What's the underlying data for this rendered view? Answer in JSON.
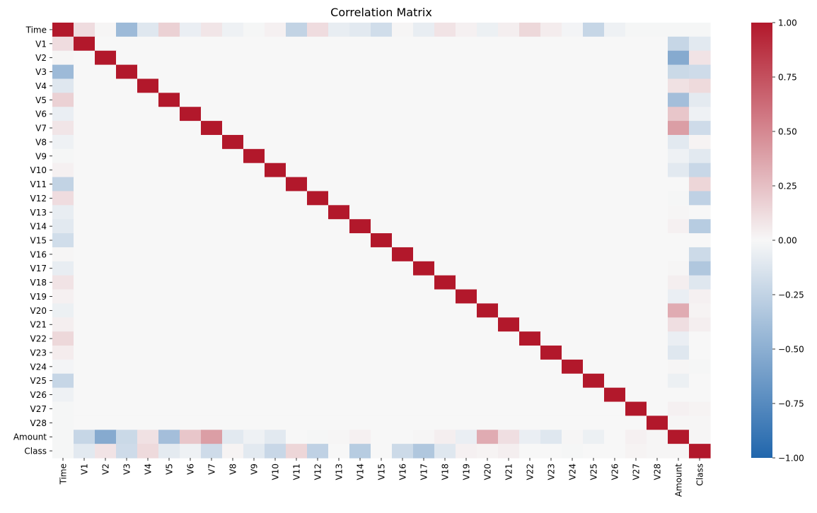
{
  "chart_data": {
    "type": "heatmap",
    "title": "Correlation Matrix",
    "xlabel": "",
    "ylabel": "",
    "labels": [
      "Time",
      "V1",
      "V2",
      "V3",
      "V4",
      "V5",
      "V6",
      "V7",
      "V8",
      "V9",
      "V10",
      "V11",
      "V12",
      "V13",
      "V14",
      "V15",
      "V16",
      "V17",
      "V18",
      "V19",
      "V20",
      "V21",
      "V22",
      "V23",
      "V24",
      "V25",
      "V26",
      "V27",
      "V28",
      "Amount",
      "Class"
    ],
    "values": [
      [
        1.0,
        0.12,
        0.01,
        -0.42,
        -0.11,
        0.17,
        -0.06,
        0.08,
        -0.04,
        -0.01,
        0.03,
        -0.25,
        0.12,
        -0.07,
        -0.1,
        -0.18,
        0.01,
        -0.07,
        0.09,
        0.03,
        -0.05,
        0.04,
        0.14,
        0.05,
        -0.02,
        -0.23,
        -0.04,
        -0.01,
        -0.01,
        -0.01,
        -0.01
      ],
      [
        0.12,
        1.0,
        0.0,
        0.0,
        0.0,
        0.0,
        0.0,
        0.0,
        0.0,
        0.0,
        0.0,
        0.0,
        0.0,
        0.0,
        0.0,
        0.0,
        0.0,
        0.0,
        0.0,
        0.0,
        0.0,
        0.0,
        0.0,
        0.0,
        0.0,
        0.0,
        0.0,
        0.0,
        0.0,
        -0.23,
        -0.1
      ],
      [
        0.01,
        0.0,
        1.0,
        0.0,
        0.0,
        0.0,
        0.0,
        0.0,
        0.0,
        0.0,
        0.0,
        0.0,
        0.0,
        0.0,
        0.0,
        0.0,
        0.0,
        0.0,
        0.0,
        0.0,
        0.0,
        0.0,
        0.0,
        0.0,
        0.0,
        0.0,
        0.0,
        0.0,
        0.0,
        -0.53,
        0.09
      ],
      [
        -0.42,
        0.0,
        0.0,
        1.0,
        0.0,
        0.0,
        0.0,
        0.0,
        0.0,
        0.0,
        0.0,
        0.0,
        0.0,
        0.0,
        0.0,
        0.0,
        0.0,
        0.0,
        0.0,
        0.0,
        0.0,
        0.0,
        0.0,
        0.0,
        0.0,
        0.0,
        0.0,
        0.0,
        0.0,
        -0.21,
        -0.19
      ],
      [
        -0.11,
        0.0,
        0.0,
        0.0,
        1.0,
        0.0,
        0.0,
        0.0,
        0.0,
        0.0,
        0.0,
        0.0,
        0.0,
        0.0,
        0.0,
        0.0,
        0.0,
        0.0,
        0.0,
        0.0,
        0.0,
        0.0,
        0.0,
        0.0,
        0.0,
        0.0,
        0.0,
        0.0,
        0.0,
        0.1,
        0.13
      ],
      [
        0.17,
        0.0,
        0.0,
        0.0,
        0.0,
        1.0,
        0.0,
        0.0,
        0.0,
        0.0,
        0.0,
        0.0,
        0.0,
        0.0,
        0.0,
        0.0,
        0.0,
        0.0,
        0.0,
        0.0,
        0.0,
        0.0,
        0.0,
        0.0,
        0.0,
        0.0,
        0.0,
        0.0,
        0.0,
        -0.39,
        -0.09
      ],
      [
        -0.06,
        0.0,
        0.0,
        0.0,
        0.0,
        0.0,
        1.0,
        0.0,
        0.0,
        0.0,
        0.0,
        0.0,
        0.0,
        0.0,
        0.0,
        0.0,
        0.0,
        0.0,
        0.0,
        0.0,
        0.0,
        0.0,
        0.0,
        0.0,
        0.0,
        0.0,
        0.0,
        0.0,
        0.0,
        0.22,
        -0.04
      ],
      [
        0.08,
        0.0,
        0.0,
        0.0,
        0.0,
        0.0,
        0.0,
        1.0,
        0.0,
        0.0,
        0.0,
        0.0,
        0.0,
        0.0,
        0.0,
        0.0,
        0.0,
        0.0,
        0.0,
        0.0,
        0.0,
        0.0,
        0.0,
        0.0,
        0.0,
        0.0,
        0.0,
        0.0,
        0.0,
        0.4,
        -0.19
      ],
      [
        -0.04,
        0.0,
        0.0,
        0.0,
        0.0,
        0.0,
        0.0,
        0.0,
        1.0,
        0.0,
        0.0,
        0.0,
        0.0,
        0.0,
        0.0,
        0.0,
        0.0,
        0.0,
        0.0,
        0.0,
        0.0,
        0.0,
        0.0,
        0.0,
        0.0,
        0.0,
        0.0,
        0.0,
        0.0,
        -0.1,
        0.02
      ],
      [
        -0.01,
        0.0,
        0.0,
        0.0,
        0.0,
        0.0,
        0.0,
        0.0,
        0.0,
        1.0,
        0.0,
        0.0,
        0.0,
        0.0,
        0.0,
        0.0,
        0.0,
        0.0,
        0.0,
        0.0,
        0.0,
        0.0,
        0.0,
        0.0,
        0.0,
        0.0,
        0.0,
        0.0,
        0.0,
        -0.04,
        -0.1
      ],
      [
        0.03,
        0.0,
        0.0,
        0.0,
        0.0,
        0.0,
        0.0,
        0.0,
        0.0,
        0.0,
        1.0,
        0.0,
        0.0,
        0.0,
        0.0,
        0.0,
        0.0,
        0.0,
        0.0,
        0.0,
        0.0,
        0.0,
        0.0,
        0.0,
        0.0,
        0.0,
        0.0,
        0.0,
        0.0,
        -0.1,
        -0.22
      ],
      [
        -0.25,
        0.0,
        0.0,
        0.0,
        0.0,
        0.0,
        0.0,
        0.0,
        0.0,
        0.0,
        0.0,
        1.0,
        0.0,
        0.0,
        0.0,
        0.0,
        0.0,
        0.0,
        0.0,
        0.0,
        0.0,
        0.0,
        0.0,
        0.0,
        0.0,
        0.0,
        0.0,
        0.0,
        0.0,
        0.0,
        0.15
      ],
      [
        0.12,
        0.0,
        0.0,
        0.0,
        0.0,
        0.0,
        0.0,
        0.0,
        0.0,
        0.0,
        0.0,
        0.0,
        1.0,
        0.0,
        0.0,
        0.0,
        0.0,
        0.0,
        0.0,
        0.0,
        0.0,
        0.0,
        0.0,
        0.0,
        0.0,
        0.0,
        0.0,
        0.0,
        0.0,
        -0.01,
        -0.26
      ],
      [
        -0.07,
        0.0,
        0.0,
        0.0,
        0.0,
        0.0,
        0.0,
        0.0,
        0.0,
        0.0,
        0.0,
        0.0,
        0.0,
        1.0,
        0.0,
        0.0,
        0.0,
        0.0,
        0.0,
        0.0,
        0.0,
        0.0,
        0.0,
        0.0,
        0.0,
        0.0,
        0.0,
        0.0,
        0.0,
        0.01,
        -0.0
      ],
      [
        -0.1,
        0.0,
        0.0,
        0.0,
        0.0,
        0.0,
        0.0,
        0.0,
        0.0,
        0.0,
        0.0,
        0.0,
        0.0,
        0.0,
        1.0,
        0.0,
        0.0,
        0.0,
        0.0,
        0.0,
        0.0,
        0.0,
        0.0,
        0.0,
        0.0,
        0.0,
        0.0,
        0.0,
        0.0,
        0.03,
        -0.3
      ],
      [
        -0.18,
        0.0,
        0.0,
        0.0,
        0.0,
        0.0,
        0.0,
        0.0,
        0.0,
        0.0,
        0.0,
        0.0,
        0.0,
        0.0,
        0.0,
        1.0,
        0.0,
        0.0,
        0.0,
        0.0,
        0.0,
        0.0,
        0.0,
        0.0,
        0.0,
        0.0,
        0.0,
        0.0,
        0.0,
        -0.0,
        -0.0
      ],
      [
        0.01,
        0.0,
        0.0,
        0.0,
        0.0,
        0.0,
        0.0,
        0.0,
        0.0,
        0.0,
        0.0,
        0.0,
        0.0,
        0.0,
        0.0,
        0.0,
        1.0,
        0.0,
        0.0,
        0.0,
        0.0,
        0.0,
        0.0,
        0.0,
        0.0,
        0.0,
        0.0,
        0.0,
        0.0,
        -0.0,
        -0.2
      ],
      [
        -0.07,
        0.0,
        0.0,
        0.0,
        0.0,
        0.0,
        0.0,
        0.0,
        0.0,
        0.0,
        0.0,
        0.0,
        0.0,
        0.0,
        0.0,
        0.0,
        0.0,
        1.0,
        0.0,
        0.0,
        0.0,
        0.0,
        0.0,
        0.0,
        0.0,
        0.0,
        0.0,
        0.0,
        0.0,
        0.01,
        -0.33
      ],
      [
        0.09,
        0.0,
        0.0,
        0.0,
        0.0,
        0.0,
        0.0,
        0.0,
        0.0,
        0.0,
        0.0,
        0.0,
        0.0,
        0.0,
        0.0,
        0.0,
        0.0,
        0.0,
        1.0,
        0.0,
        0.0,
        0.0,
        0.0,
        0.0,
        0.0,
        0.0,
        0.0,
        0.0,
        0.0,
        0.04,
        -0.11
      ],
      [
        0.03,
        0.0,
        0.0,
        0.0,
        0.0,
        0.0,
        0.0,
        0.0,
        0.0,
        0.0,
        0.0,
        0.0,
        0.0,
        0.0,
        0.0,
        0.0,
        0.0,
        0.0,
        0.0,
        1.0,
        0.0,
        0.0,
        0.0,
        0.0,
        0.0,
        0.0,
        0.0,
        0.0,
        0.0,
        -0.06,
        0.03
      ],
      [
        -0.05,
        0.0,
        0.0,
        0.0,
        0.0,
        0.0,
        0.0,
        0.0,
        0.0,
        0.0,
        0.0,
        0.0,
        0.0,
        0.0,
        0.0,
        0.0,
        0.0,
        0.0,
        0.0,
        0.0,
        1.0,
        0.0,
        0.0,
        0.0,
        0.0,
        0.0,
        0.0,
        0.0,
        0.0,
        0.34,
        0.02
      ],
      [
        0.04,
        0.0,
        0.0,
        0.0,
        0.0,
        0.0,
        0.0,
        0.0,
        0.0,
        0.0,
        0.0,
        0.0,
        0.0,
        0.0,
        0.0,
        0.0,
        0.0,
        0.0,
        0.0,
        0.0,
        0.0,
        1.0,
        0.0,
        0.0,
        0.0,
        0.0,
        0.0,
        0.0,
        0.0,
        0.11,
        0.04
      ],
      [
        0.14,
        0.0,
        0.0,
        0.0,
        0.0,
        0.0,
        0.0,
        0.0,
        0.0,
        0.0,
        0.0,
        0.0,
        0.0,
        0.0,
        0.0,
        0.0,
        0.0,
        0.0,
        0.0,
        0.0,
        0.0,
        0.0,
        1.0,
        0.0,
        0.0,
        0.0,
        0.0,
        0.0,
        0.0,
        -0.06,
        0.0
      ],
      [
        0.05,
        0.0,
        0.0,
        0.0,
        0.0,
        0.0,
        0.0,
        0.0,
        0.0,
        0.0,
        0.0,
        0.0,
        0.0,
        0.0,
        0.0,
        0.0,
        0.0,
        0.0,
        0.0,
        0.0,
        0.0,
        0.0,
        0.0,
        1.0,
        0.0,
        0.0,
        0.0,
        0.0,
        0.0,
        -0.11,
        -0.0
      ],
      [
        -0.02,
        0.0,
        0.0,
        0.0,
        0.0,
        0.0,
        0.0,
        0.0,
        0.0,
        0.0,
        0.0,
        0.0,
        0.0,
        0.0,
        0.0,
        0.0,
        0.0,
        0.0,
        0.0,
        0.0,
        0.0,
        0.0,
        0.0,
        0.0,
        1.0,
        0.0,
        0.0,
        0.0,
        0.0,
        0.01,
        -0.01
      ],
      [
        -0.23,
        0.0,
        0.0,
        0.0,
        0.0,
        0.0,
        0.0,
        0.0,
        0.0,
        0.0,
        0.0,
        0.0,
        0.0,
        0.0,
        0.0,
        0.0,
        0.0,
        0.0,
        0.0,
        0.0,
        0.0,
        0.0,
        0.0,
        0.0,
        0.0,
        1.0,
        0.0,
        0.0,
        0.0,
        -0.05,
        0.0
      ],
      [
        -0.04,
        0.0,
        0.0,
        0.0,
        0.0,
        0.0,
        0.0,
        0.0,
        0.0,
        0.0,
        0.0,
        0.0,
        0.0,
        0.0,
        0.0,
        0.0,
        0.0,
        0.0,
        0.0,
        0.0,
        0.0,
        0.0,
        0.0,
        0.0,
        0.0,
        0.0,
        1.0,
        0.0,
        0.0,
        -0.0,
        0.0
      ],
      [
        -0.01,
        0.0,
        0.0,
        0.0,
        0.0,
        0.0,
        0.0,
        0.0,
        0.0,
        0.0,
        0.0,
        0.0,
        0.0,
        0.0,
        0.0,
        0.0,
        0.0,
        0.0,
        0.0,
        0.0,
        0.0,
        0.0,
        0.0,
        0.0,
        0.0,
        0.0,
        0.0,
        1.0,
        0.0,
        0.03,
        0.02
      ],
      [
        -0.01,
        0.0,
        0.0,
        0.0,
        0.0,
        0.0,
        0.0,
        0.0,
        0.0,
        0.0,
        0.0,
        0.0,
        0.0,
        0.0,
        0.0,
        0.0,
        0.0,
        0.0,
        0.0,
        0.0,
        0.0,
        0.0,
        0.0,
        0.0,
        0.0,
        0.0,
        0.0,
        0.0,
        1.0,
        0.01,
        0.01
      ],
      [
        -0.01,
        -0.23,
        -0.53,
        -0.21,
        0.1,
        -0.39,
        0.22,
        0.4,
        -0.1,
        -0.04,
        -0.1,
        0.0,
        -0.01,
        0.01,
        0.03,
        -0.0,
        -0.0,
        0.01,
        0.04,
        -0.06,
        0.34,
        0.11,
        -0.06,
        -0.11,
        0.01,
        -0.05,
        -0.0,
        0.03,
        0.01,
        1.0,
        0.01
      ],
      [
        -0.01,
        -0.1,
        0.09,
        -0.19,
        0.13,
        -0.09,
        -0.04,
        -0.19,
        0.02,
        -0.1,
        -0.22,
        0.15,
        -0.26,
        -0.0,
        -0.3,
        -0.0,
        -0.2,
        -0.33,
        -0.11,
        0.03,
        0.02,
        0.04,
        0.0,
        -0.0,
        -0.01,
        0.0,
        0.0,
        0.02,
        0.01,
        0.01,
        1.0
      ]
    ],
    "vmin": -1.0,
    "vmax": 1.0,
    "colormap": "vlag",
    "colorbar_ticks": [
      "1.00",
      "0.75",
      "0.50",
      "0.25",
      "0.00",
      "−0.25",
      "−0.50",
      "−0.75",
      "−1.00"
    ],
    "colors": {
      "negative_end": "#2166ac",
      "center": "#f7f7f7",
      "positive_end": "#b2182b"
    }
  }
}
